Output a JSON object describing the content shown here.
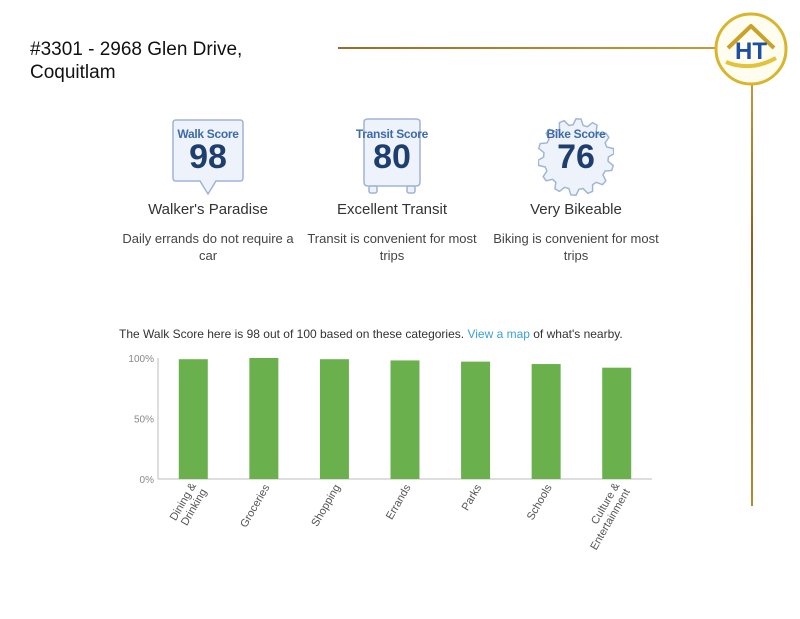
{
  "header": {
    "title_line1": "#3301 - 2968 Glen Drive,",
    "title_line2": "Coquitlam"
  },
  "logo": {
    "text": "HT"
  },
  "scores": [
    {
      "label": "Walk Score",
      "value": "98",
      "description": "Walker's Paradise",
      "detail": "Daily errands do not require a car"
    },
    {
      "label": "Transit Score",
      "value": "80",
      "description": "Excellent Transit",
      "detail": "Transit is convenient for most trips"
    },
    {
      "label": "Bike Score",
      "value": "76",
      "description": "Very Bikeable",
      "detail": "Biking is convenient for most trips"
    }
  ],
  "summary": {
    "before": "The Walk Score here is 98 out of 100 based on these categories. ",
    "link": "View a map",
    "after": " of what's nearby."
  },
  "colors": {
    "bar": "#6ab04c",
    "badge_blue": "#3e6aa8",
    "link": "#3aa0d8",
    "gold": "#b8892f"
  },
  "chart_data": {
    "type": "bar",
    "categories": [
      "Dining & Drinking",
      "Groceries",
      "Shopping",
      "Errands",
      "Parks",
      "Schools",
      "Culture & Entertainment"
    ],
    "values": [
      99,
      100,
      99,
      98,
      97,
      95,
      92
    ],
    "y_tick_labels": [
      "100%",
      "50%",
      "0%"
    ],
    "ylim": [
      0,
      100
    ],
    "grid": false
  }
}
